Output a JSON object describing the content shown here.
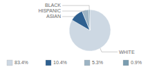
{
  "chart_data": {
    "type": "pie",
    "categories": [
      "WHITE",
      "ASIAN",
      "HISPANIC",
      "BLACK"
    ],
    "values": [
      83.4,
      10.4,
      5.3,
      0.9
    ],
    "colors": [
      "#cdd8e3",
      "#2e6090",
      "#9db4c4",
      "#7a9db0"
    ],
    "value_labels": [
      "83.4%",
      "10.4%",
      "5.3%",
      "0.9%"
    ],
    "legend": "bottom"
  }
}
